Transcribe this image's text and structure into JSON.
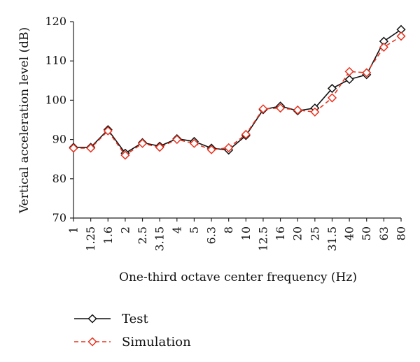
{
  "chart_data": {
    "type": "line",
    "xlabel": "One-third octave center frequency (Hz)",
    "ylabel": "Vertical acceleration level (dB)",
    "ylim": [
      70,
      120
    ],
    "yticks": [
      70,
      80,
      90,
      100,
      110,
      120
    ],
    "categories": [
      "1",
      "1.25",
      "1.6",
      "2",
      "2.5",
      "3.15",
      "4",
      "5",
      "6.3",
      "8",
      "10",
      "12.5",
      "16",
      "20",
      "25",
      "31.5",
      "40",
      "50",
      "63",
      "80"
    ],
    "legend_position": "bottom-left",
    "grid": false,
    "series": [
      {
        "name": "Test",
        "color": "#111111",
        "line_style": "solid",
        "marker": "diamond",
        "values": [
          88.0,
          88.0,
          92.5,
          86.5,
          89.2,
          88.3,
          90.2,
          89.5,
          87.8,
          87.3,
          91.0,
          97.6,
          98.5,
          97.3,
          98.0,
          103.0,
          105.3,
          106.5,
          115.0,
          118.0
        ]
      },
      {
        "name": "Simulation",
        "color": "#e8321e",
        "line_style": "dashed",
        "marker": "diamond",
        "values": [
          87.8,
          87.8,
          92.2,
          86.0,
          89.0,
          88.0,
          90.0,
          89.0,
          87.4,
          87.9,
          91.3,
          97.8,
          98.0,
          97.5,
          97.0,
          100.6,
          107.3,
          107.0,
          113.5,
          116.3
        ]
      }
    ]
  }
}
